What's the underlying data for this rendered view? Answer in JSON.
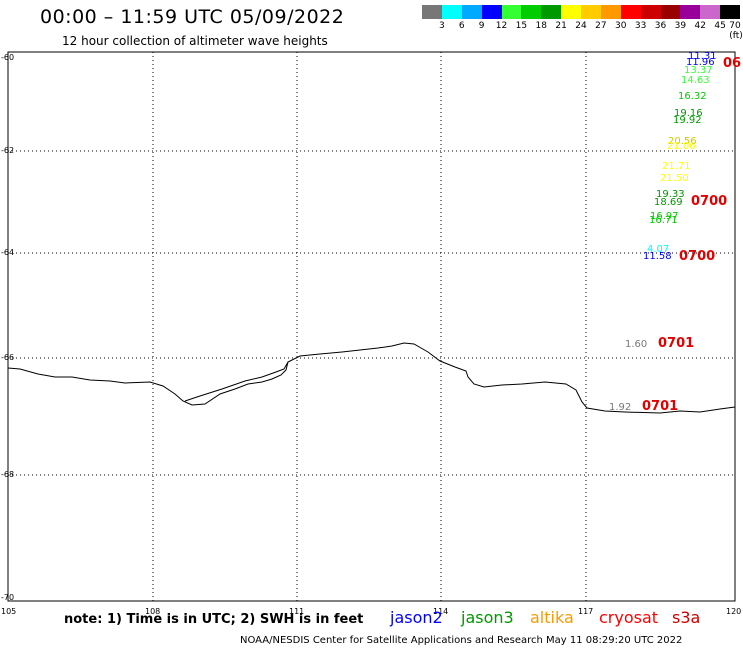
{
  "header": {
    "title": "00:00 – 11:59 UTC 05/09/2022",
    "subtitle": "12 hour collection of altimeter wave heights"
  },
  "colorbar": {
    "colors": [
      "#777777",
      "#00ffff",
      "#00aaff",
      "#0000ff",
      "#33ff33",
      "#00cc00",
      "#009900",
      "#ffff00",
      "#ffcc00",
      "#ff9900",
      "#ff0000",
      "#cc0000",
      "#990000",
      "#990099",
      "#cc66cc",
      "#000000"
    ],
    "labels": [
      "3",
      "6",
      "9",
      "12",
      "15",
      "18",
      "21",
      "24",
      "27",
      "30",
      "33",
      "36",
      "39",
      "42",
      "45",
      "70 (ft)"
    ]
  },
  "map": {
    "lat_labels": [
      "-60",
      "-62",
      "-64",
      "-66",
      "-68",
      "-70"
    ],
    "lon_labels": [
      "105",
      "108",
      "111",
      "114",
      "117",
      "120"
    ],
    "observations": [
      {
        "text": "11.31",
        "color": "#0000ff"
      },
      {
        "text": "11.96",
        "color": "#0000ff"
      },
      {
        "text": "13.37",
        "color": "#33ff33"
      },
      {
        "text": "14.63",
        "color": "#33ff33"
      },
      {
        "text": "16.32",
        "color": "#00cc00"
      },
      {
        "text": "19.16",
        "color": "#009900"
      },
      {
        "text": "19.92",
        "color": "#009900"
      },
      {
        "text": "20.56",
        "color": "#cccc00"
      },
      {
        "text": "21.06",
        "color": "#ffff00"
      },
      {
        "text": "21.71",
        "color": "#ffff00"
      },
      {
        "text": "21.50",
        "color": "#ffff00"
      },
      {
        "text": "19.33",
        "color": "#009900"
      },
      {
        "text": "18.69",
        "color": "#009900"
      },
      {
        "text": "16.97",
        "color": "#00cc00"
      },
      {
        "text": "16.71",
        "color": "#00cc00"
      },
      {
        "text": "4.07",
        "color": "#00ffff"
      },
      {
        "text": "11.58",
        "color": "#0000ff"
      },
      {
        "text": "1.60",
        "color": "#777777"
      },
      {
        "text": "1.92",
        "color": "#777777"
      }
    ],
    "pass_labels": [
      "06",
      "0700",
      "0700",
      "0701",
      "0701"
    ]
  },
  "footer": {
    "note": "note: 1) Time is in UTC; 2) SWH is in feet",
    "legend": [
      {
        "name": "jason2",
        "color": "#0000ff"
      },
      {
        "name": "jason3",
        "color": "#009900"
      },
      {
        "name": "altika",
        "color": "#ff9900"
      },
      {
        "name": "cryosat",
        "color": "#ff0000"
      },
      {
        "name": "s3a",
        "color": "#cc0000"
      }
    ],
    "credit": "NOAA/NESDIS Center for Satellite Applications and Research     May 11 08:29:20 UTC 2022"
  }
}
